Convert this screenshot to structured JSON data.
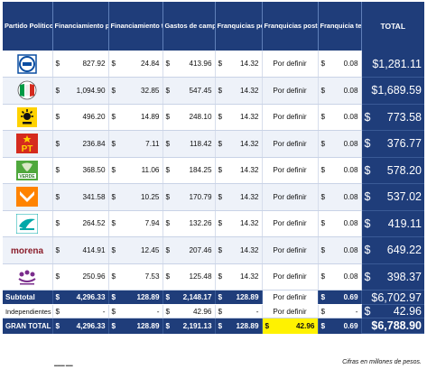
{
  "header": {
    "partido": "Partido Político Nacional",
    "ordinarias": "Financiamiento para actividades ordinarias",
    "especificas": "Financiamiento total para Actividades Específicas",
    "campana": "Gastos de campaña",
    "postales_ord": "Franquicias postales (ordinario)",
    "postales_camp": "Franquicias postales (campaña)*",
    "telegrafica": "Franquicia telegráfica",
    "total": "TOTAL"
  },
  "currency": "$",
  "parties": [
    {
      "logo": "pan-logo",
      "ordinarias": "827.92",
      "especificas": "24.84",
      "campana": "413.96",
      "postales_ord": "14.32",
      "postales_camp": "Por definir",
      "telegrafica": "0.08",
      "total": "$1,281.11"
    },
    {
      "logo": "pri-logo",
      "ordinarias": "1,094.90",
      "especificas": "32.85",
      "campana": "547.45",
      "postales_ord": "14.32",
      "postales_camp": "Por definir",
      "telegrafica": "0.08",
      "total": "$1,689.59"
    },
    {
      "logo": "prd-logo",
      "ordinarias": "496.20",
      "especificas": "14.89",
      "campana": "248.10",
      "postales_ord": "14.32",
      "postales_camp": "Por definir",
      "telegrafica": "0.08",
      "total": "773.58"
    },
    {
      "logo": "pt-logo",
      "logo_text": "PT",
      "ordinarias": "236.84",
      "especificas": "7.11",
      "campana": "118.42",
      "postales_ord": "14.32",
      "postales_camp": "Por definir",
      "telegrafica": "0.08",
      "total": "376.77"
    },
    {
      "logo": "pvem-logo",
      "logo_text": "VERDE",
      "ordinarias": "368.50",
      "especificas": "11.06",
      "campana": "184.25",
      "postales_ord": "14.32",
      "postales_camp": "Por definir",
      "telegrafica": "0.08",
      "total": "578.20"
    },
    {
      "logo": "mc-logo",
      "ordinarias": "341.58",
      "especificas": "10.25",
      "campana": "170.79",
      "postales_ord": "14.32",
      "postales_camp": "Por definir",
      "telegrafica": "0.08",
      "total": "537.02"
    },
    {
      "logo": "panal-logo",
      "ordinarias": "264.52",
      "especificas": "7.94",
      "campana": "132.26",
      "postales_ord": "14.32",
      "postales_camp": "Por definir",
      "telegrafica": "0.08",
      "total": "419.11"
    },
    {
      "logo": "morena-logo",
      "logo_text": "morena",
      "ordinarias": "414.91",
      "especificas": "12.45",
      "campana": "207.46",
      "postales_ord": "14.32",
      "postales_camp": "Por definir",
      "telegrafica": "0.08",
      "total": "649.22"
    },
    {
      "logo": "pes-logo",
      "ordinarias": "250.96",
      "especificas": "7.53",
      "campana": "125.48",
      "postales_ord": "14.32",
      "postales_camp": "Por definir",
      "telegrafica": "0.08",
      "total": "398.37"
    }
  ],
  "subtotal": {
    "label": "Subtotal",
    "ordinarias": "4,296.33",
    "especificas": "128.89",
    "campana": "2,148.17",
    "postales_ord": "128.89",
    "postales_camp": "Por definir",
    "telegrafica": "0.69",
    "total": "$6,702.97"
  },
  "independientes": {
    "label": "Independientes",
    "ordinarias": "-",
    "especificas": "-",
    "campana": "42.96",
    "postales_ord": "-",
    "postales_camp": "Por definir",
    "telegrafica": "-",
    "total": "42.96"
  },
  "gran_total": {
    "label": "GRAN TOTAL",
    "ordinarias": "4,296.33",
    "especificas": "128.89",
    "campana": "2,191.13",
    "postales_ord": "128.89",
    "postales_camp": "42.96",
    "telegrafica": "0.69",
    "total": "$6,788.90"
  },
  "footnote": "Cifras en millones de pesos.",
  "colors": {
    "header_bg": "#1f3d7a",
    "highlight": "#fff200"
  }
}
